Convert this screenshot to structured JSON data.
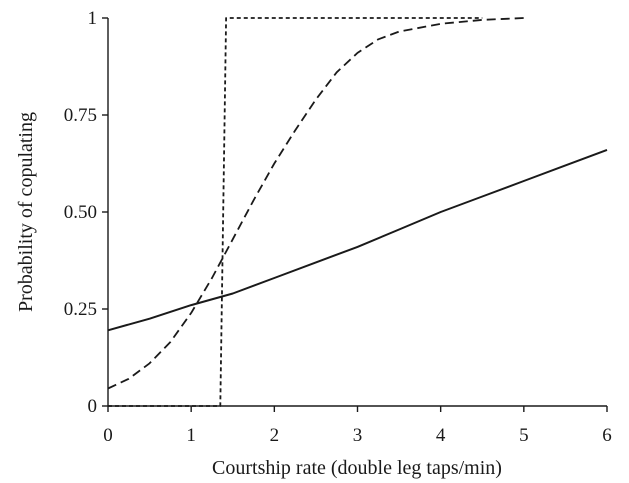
{
  "chart_data": {
    "type": "line",
    "title": "",
    "xlabel": "Courtship rate (double leg taps/min)",
    "ylabel": "Probability of copulating",
    "xlim": [
      0,
      6
    ],
    "ylim": [
      0,
      1
    ],
    "x_ticks": [
      "0",
      "1",
      "2",
      "3",
      "4",
      "5",
      "6"
    ],
    "y_ticks": [
      "0",
      "0.25",
      "0.50",
      "0.75",
      "1"
    ],
    "grid": false,
    "legend": "none",
    "series": [
      {
        "style": "solid",
        "points": [
          [
            0,
            0.195
          ],
          [
            0.5,
            0.225
          ],
          [
            1,
            0.26
          ],
          [
            1.5,
            0.29
          ],
          [
            2,
            0.33
          ],
          [
            2.5,
            0.37
          ],
          [
            3,
            0.41
          ],
          [
            3.5,
            0.455
          ],
          [
            4,
            0.5
          ],
          [
            4.5,
            0.54
          ],
          [
            5,
            0.58
          ],
          [
            5.5,
            0.62
          ],
          [
            6,
            0.66
          ]
        ]
      },
      {
        "style": "dashed",
        "points": [
          [
            0,
            0.045
          ],
          [
            0.25,
            0.07
          ],
          [
            0.5,
            0.11
          ],
          [
            0.75,
            0.165
          ],
          [
            1,
            0.24
          ],
          [
            1.25,
            0.33
          ],
          [
            1.5,
            0.43
          ],
          [
            1.75,
            0.53
          ],
          [
            2,
            0.625
          ],
          [
            2.25,
            0.71
          ],
          [
            2.5,
            0.79
          ],
          [
            2.75,
            0.86
          ],
          [
            3,
            0.91
          ],
          [
            3.25,
            0.945
          ],
          [
            3.5,
            0.965
          ],
          [
            4,
            0.985
          ],
          [
            4.5,
            0.995
          ],
          [
            5,
            1.0
          ]
        ]
      },
      {
        "style": "dotted",
        "points": [
          [
            0,
            0.0
          ],
          [
            1.35,
            0.0
          ],
          [
            1.35,
            0.0
          ],
          [
            1.42,
            1.0
          ],
          [
            4.5,
            1.0
          ]
        ]
      }
    ]
  }
}
